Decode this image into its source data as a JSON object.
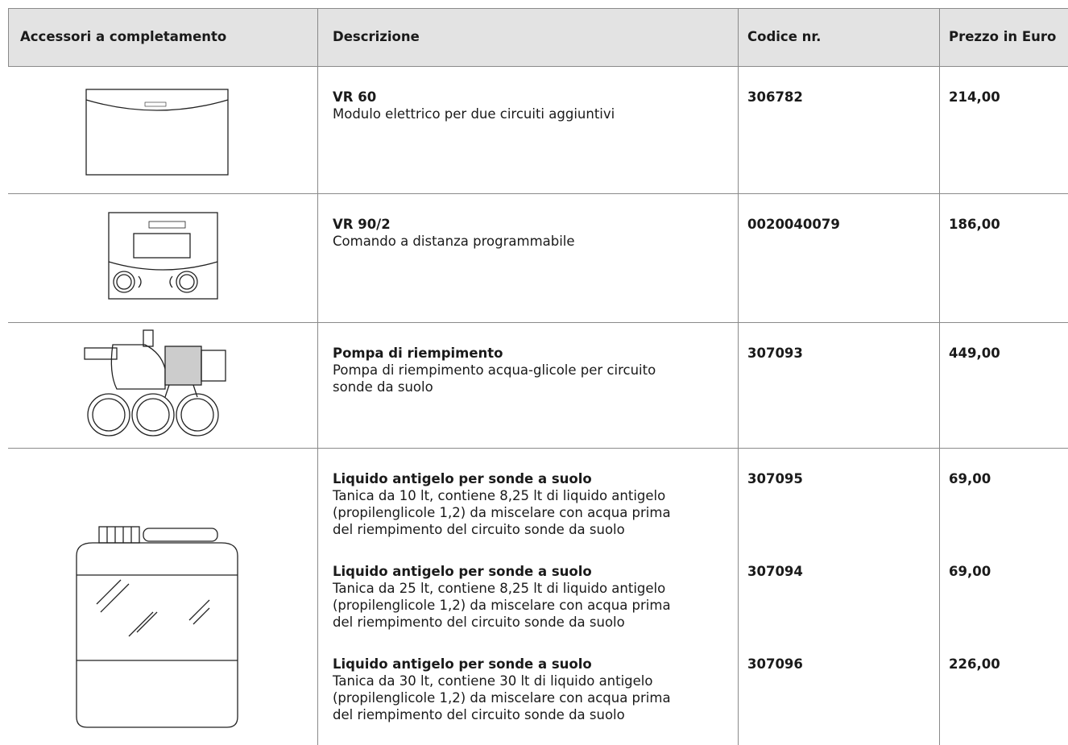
{
  "table": {
    "headers": [
      "Accessori a completamento",
      "Descrizione",
      "Codice nr.",
      "Prezzo in Euro"
    ],
    "rows": [
      {
        "items": [
          {
            "title": "VR 60",
            "lines": [
              "Modulo elettrico per due circuiti aggiuntivi"
            ],
            "code": "306782",
            "price": "214,00"
          }
        ]
      },
      {
        "items": [
          {
            "title": "VR 90/2",
            "lines": [
              "Comando a distanza programmabile"
            ],
            "code": "0020040079",
            "price": "186,00"
          }
        ]
      },
      {
        "items": [
          {
            "title": "Pompa di riempimento",
            "lines": [
              "Pompa di riempimento acqua-glicole per circuito",
              "sonde da suolo"
            ],
            "code": "307093",
            "price": "449,00"
          }
        ]
      },
      {
        "items": [
          {
            "title": "Liquido antigelo per sonde a suolo",
            "lines": [
              "Tanica da 10 lt, contiene 8,25 lt di liquido antigelo",
              "(propilenglicole 1,2) da miscelare con acqua prima",
              "del riempimento del circuito sonde da suolo"
            ],
            "code": "307095",
            "price": "69,00"
          },
          {
            "title": "Liquido antigelo per sonde a suolo",
            "lines": [
              "Tanica da 25 lt, contiene 8,25 lt di liquido antigelo",
              "(propilenglicole 1,2) da miscelare con acqua prima",
              "del riempimento del circuito sonde da suolo"
            ],
            "code": "307094",
            "price": "69,00"
          },
          {
            "title": "Liquido antigelo per sonde a suolo",
            "lines": [
              "Tanica da 30 lt, contiene 30 lt di liquido antigelo",
              "(propilenglicole 1,2) da miscelare con acqua prima",
              "del riempimento del circuito sonde da suolo"
            ],
            "code": "307096",
            "price": "226,00"
          }
        ]
      }
    ]
  }
}
